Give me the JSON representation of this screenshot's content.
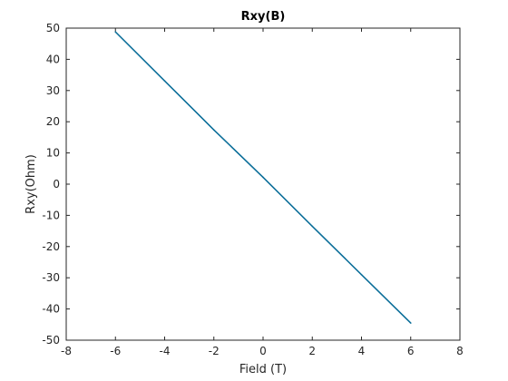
{
  "chart_data": {
    "type": "line",
    "title": "Rxy(B)",
    "xlabel": "Field (T)",
    "ylabel": "Rxy(Ohm)",
    "xlim": [
      -8,
      8
    ],
    "ylim": [
      -50,
      50
    ],
    "xticks": [
      -8,
      -6,
      -4,
      -2,
      0,
      2,
      4,
      6,
      8
    ],
    "yticks": [
      -50,
      -40,
      -30,
      -20,
      -10,
      0,
      10,
      20,
      30,
      40,
      50
    ],
    "grid": false,
    "legend": "none",
    "series": [
      {
        "color": "#0b6e99",
        "x": [
          -6,
          -4,
          -2,
          0,
          2,
          4,
          6
        ],
        "y": [
          48.8,
          33.1,
          17.4,
          2.2,
          -13.5,
          -29.0,
          -44.5
        ]
      }
    ]
  }
}
